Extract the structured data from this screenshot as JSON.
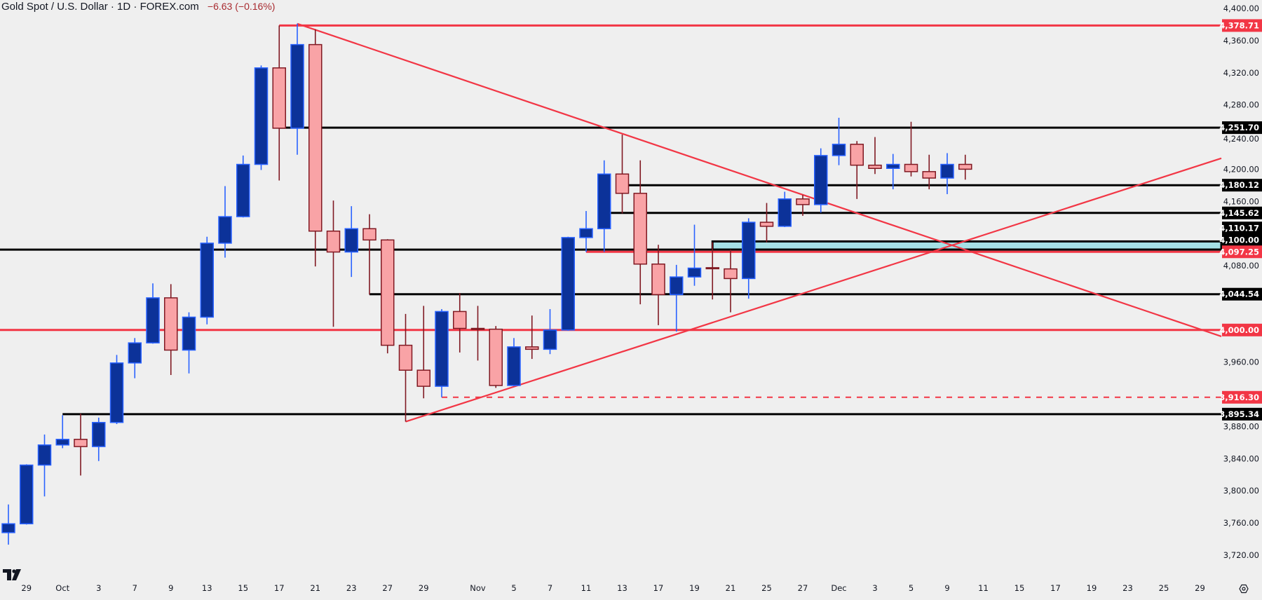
{
  "header": {
    "symbol_title": "Gold Spot / U.S. Dollar · 1D · FOREX.com",
    "change": "−6.63 (−0.16%)"
  },
  "colors": {
    "background": "#efefef",
    "up_fill": "#0c3299",
    "up_border": "#2962ff",
    "down_fill": "#f9a3a6",
    "down_border": "#801922",
    "red_line": "#f23645",
    "black_line": "#000000",
    "zone_fill": "#a5e0e6"
  },
  "icons": {
    "logo": "tradingview-logo",
    "settings": "settings-icon"
  },
  "chart_data": {
    "type": "candlestick",
    "title": "Gold Spot / U.S. Dollar · 1D · FOREX.com",
    "ylim": [
      3690,
      4410
    ],
    "grid": false,
    "columns": [
      "date",
      "open",
      "high",
      "low",
      "close"
    ],
    "candles": [
      [
        "2025-09-26",
        3748,
        3783,
        3733,
        3759
      ],
      [
        "2025-09-29",
        3759,
        3833,
        3758,
        3832
      ],
      [
        "2025-09-30",
        3832,
        3870,
        3793,
        3857
      ],
      [
        "2025-10-01",
        3857,
        3894,
        3853,
        3864
      ],
      [
        "2025-10-02",
        3864,
        3896,
        3819,
        3855
      ],
      [
        "2025-10-03",
        3855,
        3891,
        3837,
        3885
      ],
      [
        "2025-10-06",
        3885,
        3969,
        3883,
        3959
      ],
      [
        "2025-10-07",
        3959,
        3990,
        3940,
        3984
      ],
      [
        "2025-10-08",
        3984,
        4058,
        3983,
        4040
      ],
      [
        "2025-10-09",
        4040,
        4057,
        3944,
        3975
      ],
      [
        "2025-10-10",
        3975,
        4022,
        3946,
        4016
      ],
      [
        "2025-10-13",
        4016,
        4116,
        4007,
        4108
      ],
      [
        "2025-10-14",
        4108,
        4179,
        4090,
        4141
      ],
      [
        "2025-10-15",
        4141,
        4217,
        4140,
        4206
      ],
      [
        "2025-10-16",
        4206,
        4329,
        4199,
        4326
      ],
      [
        "2025-10-17",
        4326,
        4378.71,
        4186,
        4251
      ],
      [
        "2025-10-20",
        4251,
        4381,
        4218,
        4355
      ],
      [
        "2025-10-21",
        4355,
        4374,
        4079,
        4123
      ],
      [
        "2025-10-22",
        4123,
        4161,
        4004,
        4097
      ],
      [
        "2025-10-23",
        4097,
        4154,
        4066,
        4126
      ],
      [
        "2025-10-24",
        4126,
        4144,
        4044,
        4112
      ],
      [
        "2025-10-27",
        4112,
        4113,
        3971,
        3981
      ],
      [
        "2025-10-28",
        3981,
        4020,
        3886,
        3950
      ],
      [
        "2025-10-29",
        3950,
        4030,
        3915,
        3930
      ],
      [
        "2025-10-30",
        3930,
        4026,
        3916.3,
        4023
      ],
      [
        "2025-10-31",
        4023,
        4046,
        3972,
        4002
      ],
      [
        "2025-11-03",
        4002,
        4030,
        3962,
        4001
      ],
      [
        "2025-11-04",
        4001,
        4005,
        3928,
        3931
      ],
      [
        "2025-11-05",
        3931,
        3990,
        3930,
        3979
      ],
      [
        "2025-11-06",
        3979,
        4018,
        3964,
        3976
      ],
      [
        "2025-11-07",
        3976,
        4026,
        3970,
        4000
      ],
      [
        "2025-11-10",
        4000,
        4116,
        3999,
        4115
      ],
      [
        "2025-11-11",
        4115,
        4148,
        4097,
        4126
      ],
      [
        "2025-11-12",
        4126,
        4211,
        4097,
        4194
      ],
      [
        "2025-11-13",
        4194,
        4243,
        4145,
        4170
      ],
      [
        "2025-11-14",
        4170,
        4211,
        4032,
        4082
      ],
      [
        "2025-11-17",
        4082,
        4106,
        4006,
        4044
      ],
      [
        "2025-11-18",
        4044,
        4081,
        3998,
        4066
      ],
      [
        "2025-11-19",
        4066,
        4131,
        4055,
        4077
      ],
      [
        "2025-11-20",
        4077.5,
        4109,
        4038,
        4077
      ],
      [
        "2025-11-21",
        4076,
        4100,
        4022,
        4064
      ],
      [
        "2025-11-24",
        4064,
        4139,
        4039,
        4134
      ],
      [
        "2025-11-25",
        4134,
        4158,
        4109,
        4129
      ],
      [
        "2025-11-26",
        4129,
        4172,
        4128,
        4163
      ],
      [
        "2025-11-27",
        4163,
        4168,
        4142,
        4156
      ],
      [
        "2025-11-28",
        4156,
        4226,
        4146,
        4217
      ],
      [
        "2025-12-01",
        4217,
        4264,
        4205,
        4231
      ],
      [
        "2025-12-02",
        4231,
        4235,
        4163,
        4205
      ],
      [
        "2025-12-03",
        4205,
        4240,
        4194,
        4201
      ],
      [
        "2025-12-04",
        4201,
        4219,
        4175,
        4206
      ],
      [
        "2025-12-05",
        4206,
        4259,
        4191,
        4197
      ],
      [
        "2025-12-08",
        4197,
        4218,
        4175,
        4189
      ],
      [
        "2025-12-09",
        4189,
        4220,
        4169,
        4206
      ],
      [
        "2025-12-10",
        4206,
        4218,
        4187,
        4200
      ]
    ],
    "y_ticks": [
      {
        "value": 4400,
        "label": "4,400.00"
      },
      {
        "value": 4360,
        "label": "4,360.00"
      },
      {
        "value": 4320,
        "label": "4,320.00"
      },
      {
        "value": 4280,
        "label": "4,280.00"
      },
      {
        "value": 4240,
        "label": "4,240.00"
      },
      {
        "value": 4200,
        "label": "4,200.00"
      },
      {
        "value": 4160,
        "label": "4,160.00"
      },
      {
        "value": 4080,
        "label": "4,080.00"
      },
      {
        "value": 3960,
        "label": "3,960.00"
      },
      {
        "value": 3880,
        "label": "3,880.00"
      },
      {
        "value": 3840,
        "label": "3,840.00"
      },
      {
        "value": 3800,
        "label": "3,800.00"
      },
      {
        "value": 3760,
        "label": "3,760.00"
      },
      {
        "value": 3720,
        "label": "3,720.00"
      }
    ],
    "x_ticks": [
      {
        "label": "29",
        "date": "2025-09-29"
      },
      {
        "label": "Oct",
        "date": "2025-10-01"
      },
      {
        "label": "3",
        "date": "2025-10-03"
      },
      {
        "label": "7",
        "date": "2025-10-07"
      },
      {
        "label": "9",
        "date": "2025-10-09"
      },
      {
        "label": "13",
        "date": "2025-10-13"
      },
      {
        "label": "15",
        "date": "2025-10-15"
      },
      {
        "label": "17",
        "date": "2025-10-17"
      },
      {
        "label": "21",
        "date": "2025-10-21"
      },
      {
        "label": "23",
        "date": "2025-10-23"
      },
      {
        "label": "27",
        "date": "2025-10-27"
      },
      {
        "label": "29",
        "date": "2025-10-29"
      },
      {
        "label": "Nov",
        "date": "2025-11-03"
      },
      {
        "label": "5",
        "date": "2025-11-05"
      },
      {
        "label": "7",
        "date": "2025-11-07"
      },
      {
        "label": "11",
        "date": "2025-11-11"
      },
      {
        "label": "13",
        "date": "2025-11-13"
      },
      {
        "label": "17",
        "date": "2025-11-17"
      },
      {
        "label": "19",
        "date": "2025-11-19"
      },
      {
        "label": "21",
        "date": "2025-11-21"
      },
      {
        "label": "25",
        "date": "2025-11-25"
      },
      {
        "label": "27",
        "date": "2025-11-27"
      },
      {
        "label": "Dec",
        "date": "2025-12-01"
      },
      {
        "label": "3",
        "date": "2025-12-03"
      },
      {
        "label": "5",
        "date": "2025-12-05"
      },
      {
        "label": "9",
        "date": "2025-12-09"
      },
      {
        "label": "11",
        "date": "2025-12-11"
      },
      {
        "label": "15",
        "date": "2025-12-15"
      },
      {
        "label": "17",
        "date": "2025-12-17"
      },
      {
        "label": "19",
        "date": "2025-12-19"
      },
      {
        "label": "23",
        "date": "2025-12-23"
      },
      {
        "label": "25",
        "date": "2025-12-25"
      },
      {
        "label": "29",
        "date": "2025-12-29"
      }
    ],
    "horizontal_levels": [
      {
        "price": 4378.71,
        "label": "4,378.71",
        "color": "red",
        "style": "solid",
        "from": "2025-10-17"
      },
      {
        "price": 4251.7,
        "label": "4,251.70",
        "color": "black",
        "style": "solid",
        "from": "2025-10-17"
      },
      {
        "price": 4180.12,
        "label": "4,180.12",
        "color": "black",
        "style": "solid",
        "from": "2025-11-13"
      },
      {
        "price": 4145.62,
        "label": "4,145.62",
        "color": "black",
        "style": "solid",
        "from": "2025-11-12"
      },
      {
        "price": 4100.0,
        "label": "4,100.00",
        "color": "black",
        "style": "solid",
        "from": null
      },
      {
        "price": 4097.25,
        "label": "4,097.25",
        "color": "red",
        "style": "solid",
        "from": "2025-11-11"
      },
      {
        "price": 4044.54,
        "label": "4,044.54",
        "color": "black",
        "style": "solid",
        "from": "2025-10-24"
      },
      {
        "price": 4000.0,
        "label": "4,000.00",
        "color": "red",
        "style": "solid",
        "from": null
      },
      {
        "price": 3916.3,
        "label": "3,916.30",
        "color": "red",
        "style": "dashed",
        "from": "2025-10-30"
      },
      {
        "price": 3895.34,
        "label": "3,895.34",
        "color": "black",
        "style": "solid",
        "from": "2025-10-01"
      }
    ],
    "zones": [
      {
        "top": 4110.17,
        "bottom": 4100.0,
        "top_label": "4,110.17",
        "from": "2025-11-20"
      }
    ],
    "trendlines": [
      {
        "name": "",
        "color": "red",
        "p1": [
          "2025-10-20",
          4381
        ],
        "p2": [
          "2025-12-01",
          4153
        ],
        "extend": "right"
      },
      {
        "name": "",
        "color": "red",
        "p1": [
          "2025-10-28",
          3886
        ],
        "p2": [
          "2025-12-01",
          4060
        ],
        "extend": "right"
      }
    ]
  }
}
